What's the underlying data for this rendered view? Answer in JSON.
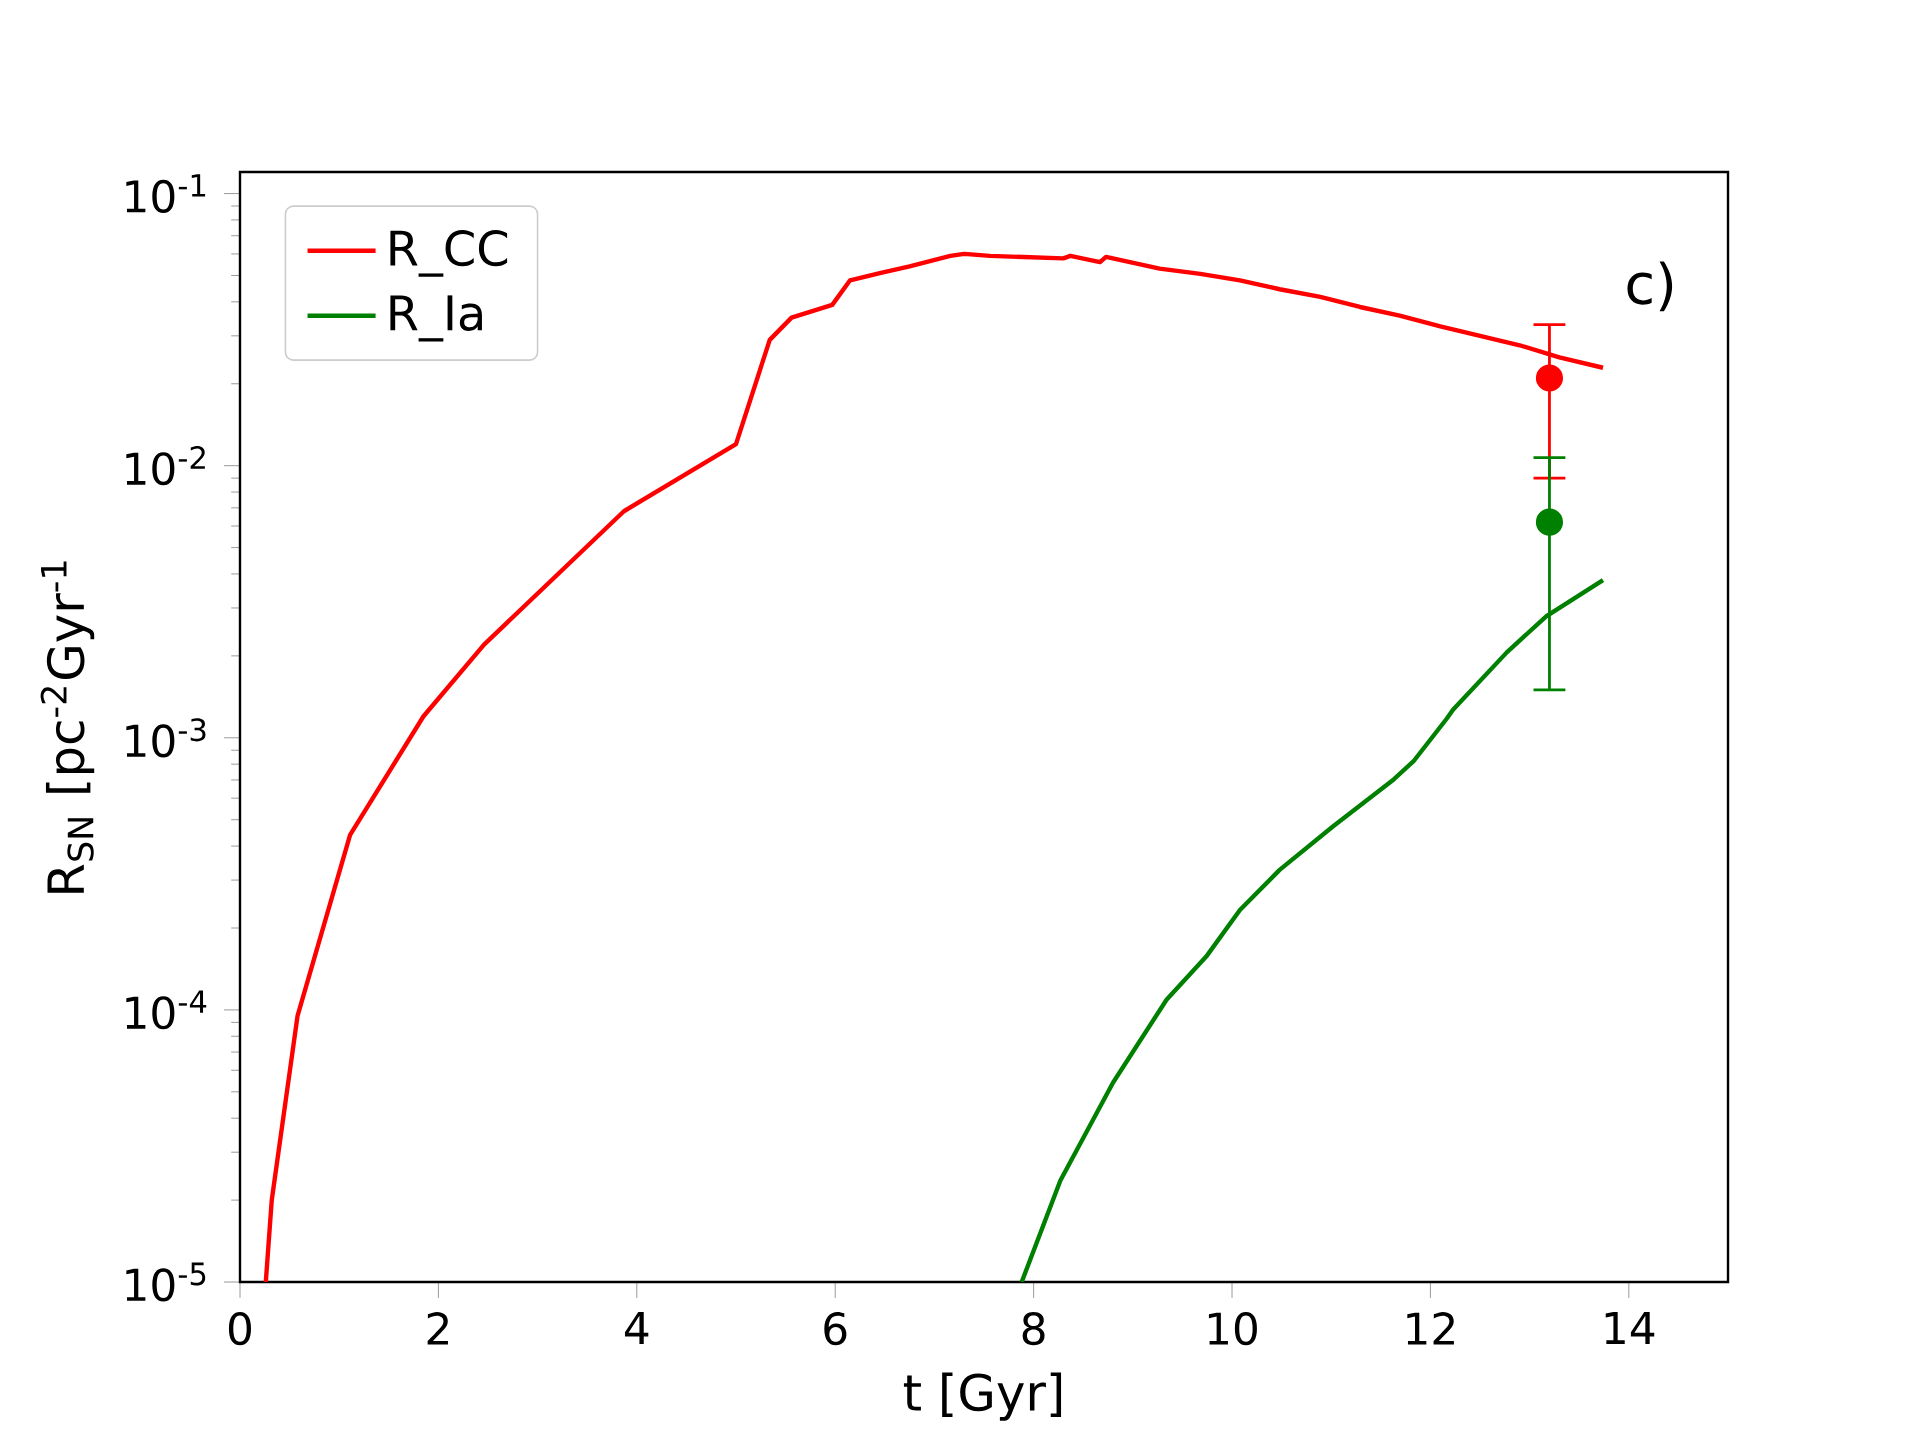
{
  "chart_data": {
    "type": "line",
    "xlabel": "t [Gyr]",
    "ylabel": "R$_{SN}$ [pc$^{-2}$Gyr$^{-1}$",
    "log": "y",
    "legend": "top left",
    "xlim": [
      0,
      15
    ],
    "ylim": [
      1e-05,
      0.12
    ],
    "xticks": [
      0,
      2,
      4,
      6,
      8,
      10,
      12,
      14
    ],
    "yticks": [
      {
        "value": 1e-05,
        "label": "10$^{-5}$"
      },
      {
        "value": 0.0001,
        "label": "10$^{-4}$"
      },
      {
        "value": 0.001,
        "label": "10$^{-3}$"
      },
      {
        "value": 0.01,
        "label": "10$^{-2}$"
      },
      {
        "value": 0.1,
        "label": "10$^{-1}$"
      }
    ],
    "annotations": [
      "c)"
    ],
    "series": [
      {
        "name": "R_CC",
        "color": "#ff0000",
        "line_style": "solid",
        "x": [
          0.26,
          0.32,
          0.58,
          1.11,
          1.85,
          2.46,
          3.87,
          5.0,
          5.34,
          5.56,
          5.97,
          6.15,
          6.45,
          6.75,
          7.16,
          7.3,
          7.56,
          8.3,
          8.37,
          8.67,
          8.73,
          9.27,
          9.68,
          10.08,
          10.48,
          10.89,
          11.29,
          11.69,
          12.1,
          12.5,
          12.9,
          13.3,
          13.74
        ],
        "values": [
          1e-05,
          2e-05,
          9.5e-05,
          0.00044,
          0.0012,
          0.0022,
          0.0068,
          0.012,
          0.029,
          0.035,
          0.039,
          0.048,
          0.051,
          0.054,
          0.059,
          0.06,
          0.059,
          0.0578,
          0.059,
          0.056,
          0.0585,
          0.053,
          0.0507,
          0.048,
          0.0445,
          0.0417,
          0.0383,
          0.0356,
          0.0325,
          0.03,
          0.0277,
          0.025,
          0.0229
        ]
      },
      {
        "name": "R_Ia",
        "color": "#008000",
        "line_style": "solid",
        "x": [
          7.88,
          8.27,
          8.8,
          9.34,
          9.74,
          10.08,
          10.48,
          11.02,
          11.63,
          11.83,
          12.16,
          12.23,
          12.77,
          13.17,
          13.74
        ],
        "values": [
          1e-05,
          2.36e-05,
          5.4e-05,
          0.000109,
          0.000157,
          0.000233,
          0.000327,
          0.000473,
          0.000703,
          0.00082,
          0.00117,
          0.00127,
          0.00206,
          0.0028,
          0.0038
        ]
      },
      {
        "type": "scatter",
        "color": "#ff0000",
        "x": [
          13.2
        ],
        "values": [
          0.021
        ],
        "errors": [
          [
            0.009,
            0.033
          ]
        ]
      },
      {
        "type": "scatter",
        "color": "#008000",
        "x": [
          13.2
        ],
        "values": [
          0.0062
        ],
        "errors": [
          [
            0.0015,
            0.0107
          ]
        ]
      }
    ]
  }
}
